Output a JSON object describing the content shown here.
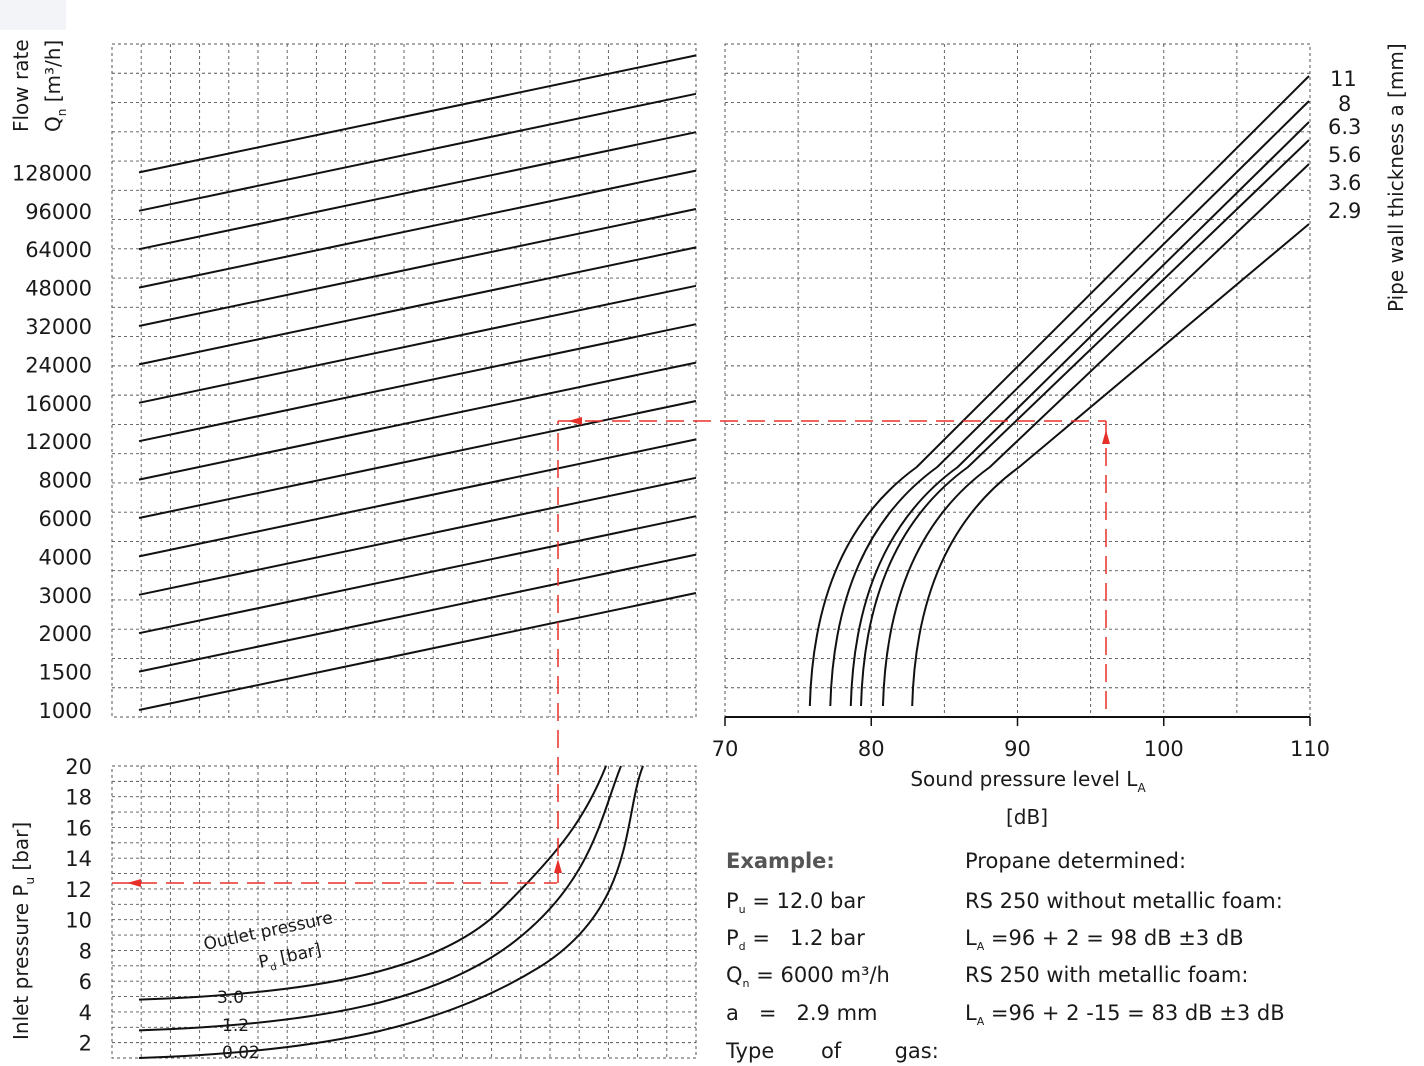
{
  "chart_data": [
    {
      "type": "line",
      "id": "flow-rate-panel",
      "ylabel_line1": "Flow rate",
      "ylabel_line2_main": "Q",
      "ylabel_line2_sub": "n",
      "ylabel_line2_unit": " [m³/h]",
      "y_ticks": [
        "1000",
        "1500",
        "2000",
        "3000",
        "4000",
        "6000",
        "8000",
        "12000",
        "16000",
        "24000",
        "32000",
        "48000",
        "64000",
        "96000",
        "128000"
      ],
      "series_count": 15
    },
    {
      "type": "line",
      "id": "sound-level-panel",
      "xlabel_main": "Sound pressure level L",
      "xlabel_sub": "A",
      "xlabel_unit": "[dB]",
      "x": [
        70,
        80,
        90,
        100,
        110
      ],
      "x_ticks": [
        "70",
        "80",
        "90",
        "100",
        "110"
      ],
      "xlim": [
        70,
        110
      ],
      "right_label": "Pipe wall thickness a [mm]",
      "series": [
        {
          "name": "11",
          "x_start": 75.8
        },
        {
          "name": "8",
          "x_start": 77.2
        },
        {
          "name": "6.3",
          "x_start": 78.6
        },
        {
          "name": "5.6",
          "x_start": 79.3
        },
        {
          "name": "3.6",
          "x_start": 80.8
        },
        {
          "name": "2.9",
          "x_start": 82.8
        }
      ]
    },
    {
      "type": "line",
      "id": "inlet-pressure-panel",
      "ylabel_main": "Inlet pressure P",
      "ylabel_sub": "u",
      "ylabel_unit": " [bar]",
      "y_ticks": [
        "2",
        "4",
        "6",
        "8",
        "10",
        "12",
        "14",
        "16",
        "18",
        "20"
      ],
      "ylim": [
        1,
        20
      ],
      "legend_title_line1": "Outlet pressure",
      "legend_title_line2_main": "P",
      "legend_title_line2_sub": "d",
      "legend_title_line2_unit": " [bar]",
      "series": [
        {
          "name": "3.0",
          "y_start": 4.8
        },
        {
          "name": "1.2",
          "y_start": 2.8
        },
        {
          "name": "0.02",
          "y_start": 1.0
        }
      ]
    }
  ],
  "example": {
    "title": "Example:",
    "pu_main": "P",
    "pu_sub": "u",
    "pu_value": " = 12.0 bar",
    "pd_main": "P",
    "pd_sub": "d",
    "pd_value": " =   1.2 bar",
    "qn_main": "Q",
    "qn_sub": "n",
    "qn_value": " = 6000 m³/h",
    "a_line": "a   =   2.9 mm",
    "type_line": "Type       of        gas:",
    "gas_line": "Propane determined:",
    "without_foam": "RS 250 without metallic foam:",
    "la1_main": "L",
    "la1_sub": "A",
    "la1_value": " =96 + 2 = 98 dB ±3 dB",
    "with_foam": "RS 250 with metallic foam:",
    "la2_main": "L",
    "la2_sub": "A",
    "la2_value": " =96 + 2 -15 = 83 dB ±3 dB"
  },
  "colors": {
    "curve": "#111111",
    "grid": "#555555",
    "example_path": "#e8302a",
    "heading": "#555555"
  }
}
